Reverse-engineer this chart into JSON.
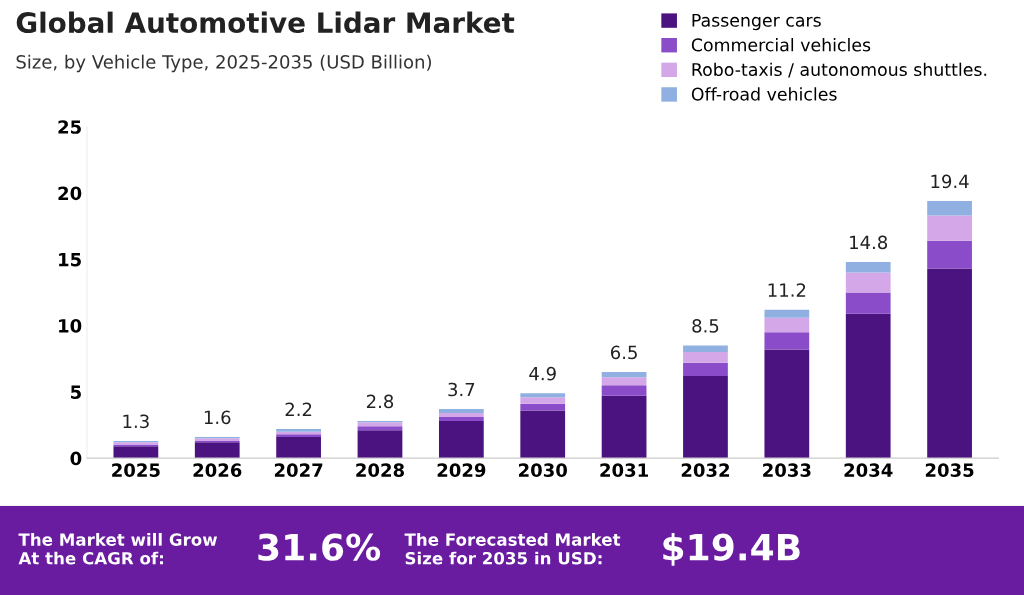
{
  "chart_data": {
    "type": "bar",
    "stacked": true,
    "title": "Global Automotive Lidar Market",
    "subtitle": "Size, by Vehicle Type, 2025-2035 (USD Billion)",
    "categories": [
      "2025",
      "2026",
      "2027",
      "2028",
      "2029",
      "2030",
      "2031",
      "2032",
      "2033",
      "2034",
      "2035"
    ],
    "series": [
      {
        "name": "Passenger cars",
        "color": "#4b1380",
        "values": [
          0.9,
          1.2,
          1.6,
          2.1,
          2.8,
          3.6,
          4.7,
          6.2,
          8.2,
          10.9,
          14.3
        ]
      },
      {
        "name": "Commercial vehicles",
        "color": "#8a4cc8",
        "values": [
          0.1,
          0.1,
          0.2,
          0.3,
          0.3,
          0.5,
          0.8,
          1.0,
          1.3,
          1.6,
          2.1
        ]
      },
      {
        "name": "Robo-taxis / autonomous shuttles.",
        "color": "#d4a8e8",
        "values": [
          0.2,
          0.2,
          0.2,
          0.3,
          0.3,
          0.5,
          0.6,
          0.8,
          1.1,
          1.5,
          1.9
        ]
      },
      {
        "name": "Off-road vehicles",
        "color": "#8fb0e0",
        "values": [
          0.1,
          0.1,
          0.2,
          0.1,
          0.3,
          0.3,
          0.4,
          0.5,
          0.6,
          0.8,
          1.1
        ]
      }
    ],
    "totals": [
      "1.3",
      "1.6",
      "2.2",
      "2.8",
      "3.7",
      "4.9",
      "6.5",
      "8.5",
      "11.2",
      "14.8",
      "19.4"
    ],
    "ylim": [
      0,
      25
    ],
    "yticks": [
      0,
      5,
      10,
      15,
      20,
      25
    ],
    "grid": false,
    "legend": "top right",
    "annotations": [
      "The Market will Grow\nAt the CAGR of:",
      "31.6%",
      "The Forecasted Market\nSize for 2035 in USD:",
      "$19.4B"
    ]
  }
}
